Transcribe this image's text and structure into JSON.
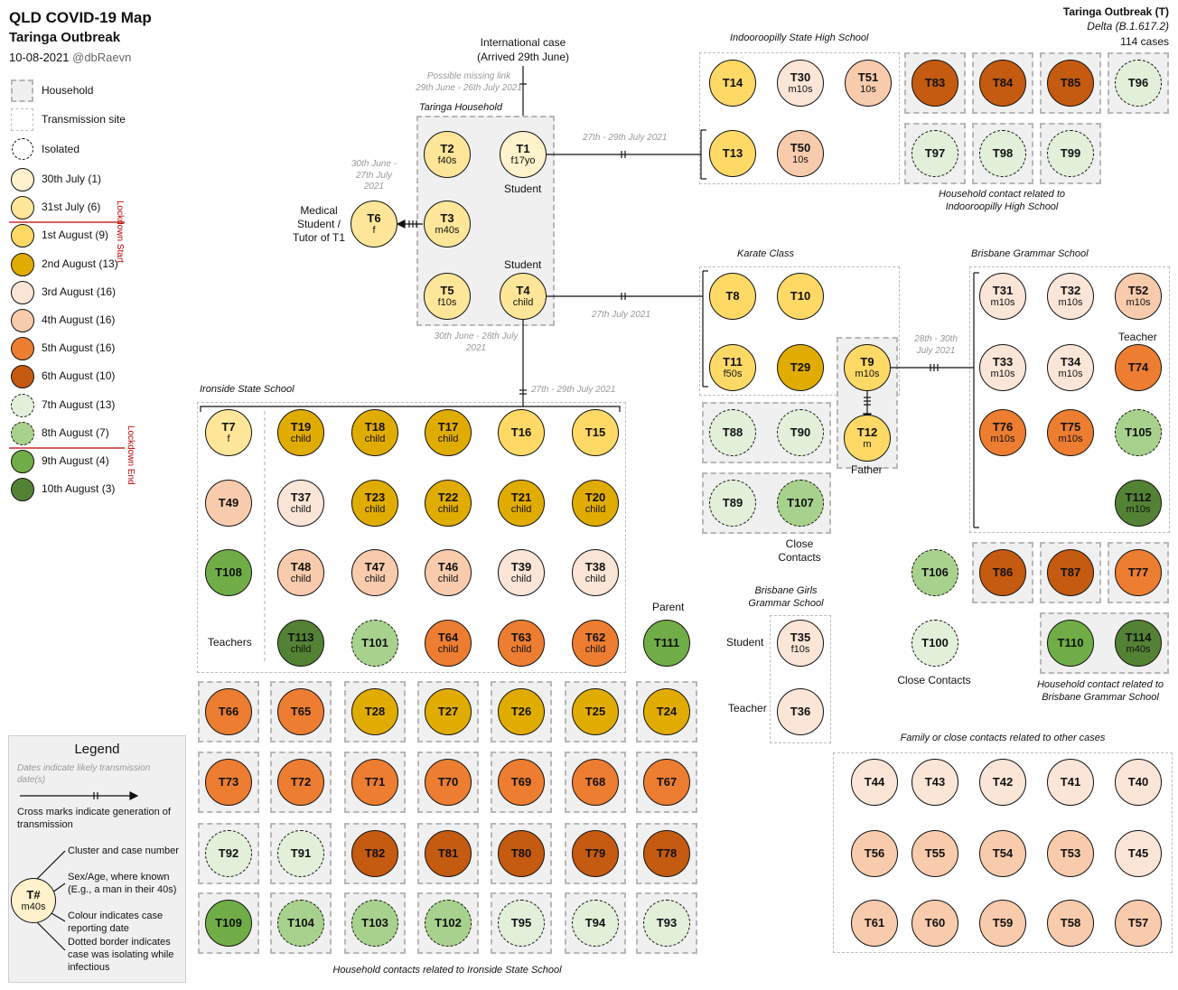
{
  "header": {
    "title": "QLD COVID-19 Map",
    "subtitle": "Taringa Outbreak",
    "date": "10-08-2021",
    "author": "@dbRaevn",
    "cluster_name": "Taringa Outbreak (T)",
    "variant": "Delta (B.1.617.2)",
    "cases": "114 cases"
  },
  "key": {
    "household": "Household",
    "transmission_site": "Transmission site",
    "isolated": "Isolated",
    "lockdown_start": "Lockdown Start",
    "lockdown_end": "Lockdown End",
    "dates": [
      {
        "label": "30th July (1)",
        "color": "#fff2cc",
        "iso": false
      },
      {
        "label": "31st July (6)",
        "color": "#ffe699",
        "iso": false
      },
      {
        "label": "1st August (9)",
        "color": "#ffd966",
        "iso": false
      },
      {
        "label": "2nd August (13)",
        "color": "#e1ac00",
        "iso": false
      },
      {
        "label": "3rd August (16)",
        "color": "#fbe5d6",
        "iso": false
      },
      {
        "label": "4th August (16)",
        "color": "#f8cbad",
        "iso": false
      },
      {
        "label": "5th August (16)",
        "color": "#ed7d31",
        "iso": false
      },
      {
        "label": "6th August (10)",
        "color": "#c55a11",
        "iso": false
      },
      {
        "label": "7th August (13)",
        "color": "#e2f0d9",
        "iso": true
      },
      {
        "label": "8th August (7)",
        "color": "#a9d18e",
        "iso": true
      },
      {
        "label": "9th August (4)",
        "color": "#70ad47",
        "iso": false
      },
      {
        "label": "10th August (3)",
        "color": "#548235",
        "iso": false
      }
    ]
  },
  "legend": {
    "title": "Legend",
    "dates_note": "Dates indicate likely transmission date(s)",
    "cross_note": "Cross marks indicate generation of transmission",
    "cluster_note": "Cluster and case number",
    "sex_note": "Sex/Age, where known (E.g., a man in their 40s)",
    "colour_note": "Colour indicates case reporting date",
    "dotted_note": "Dotted border indicates case was isolating while infectious",
    "sample_id": "T#",
    "sample_sa": "m40s"
  },
  "labels": {
    "international": "International case",
    "arrived": "(Arrived 29th June)",
    "missing_link": "Possible missing link",
    "missing_dates": "29th June - 26th July 2021",
    "taringa_household": "Taringa Household",
    "t6_dates": "30th June - 27th July 2021",
    "t6_role": "Medical Student / Tutor of T1",
    "student1": "Student",
    "student4": "Student",
    "t1_link": "27th - 29th July 2021",
    "t4_link": "27th July 2021",
    "t4_down": "30th June - 28th July 2021",
    "ironside_link": "27th - 29th July 2021",
    "indooroopilly": "Indooroopilly State High School",
    "indoor_hh": "Household contact related to Indooroopilly High School",
    "karate": "Karate Class",
    "t9_link": "28th - 30th July 2021",
    "father": "Father",
    "close_contacts_karate": "Close Contacts",
    "bgs": "Brisbane Grammar School",
    "teacher_bgs": "Teacher",
    "bgs_hh": "Household contact related to Brisbane Grammar School",
    "bggs": "Brisbane Girls Grammar School",
    "student_bggs": "Student",
    "teacher_bggs": "Teacher",
    "close_contacts": "Close Contacts",
    "ironside": "Ironside State School",
    "teachers": "Teachers",
    "parent": "Parent",
    "ironside_hh": "Household contacts related to Ironside State School",
    "family": "Family or close contacts related to other cases"
  },
  "cases": [
    {
      "id": "T1",
      "sa": "f17yo",
      "d": 0
    },
    {
      "id": "T2",
      "sa": "f40s",
      "d": 1
    },
    {
      "id": "T3",
      "sa": "m40s",
      "d": 1
    },
    {
      "id": "T4",
      "sa": "child",
      "d": 1
    },
    {
      "id": "T5",
      "sa": "f10s",
      "d": 1
    },
    {
      "id": "T6",
      "sa": "f",
      "d": 1
    },
    {
      "id": "T14",
      "sa": "",
      "d": 2
    },
    {
      "id": "T30",
      "sa": "m10s",
      "d": 4
    },
    {
      "id": "T51",
      "sa": "10s",
      "d": 5
    },
    {
      "id": "T13",
      "sa": "",
      "d": 2
    },
    {
      "id": "T50",
      "sa": "10s",
      "d": 5
    },
    {
      "id": "T83",
      "sa": "",
      "d": 7
    },
    {
      "id": "T84",
      "sa": "",
      "d": 7
    },
    {
      "id": "T85",
      "sa": "",
      "d": 7
    },
    {
      "id": "T96",
      "sa": "",
      "d": 8
    },
    {
      "id": "T97",
      "sa": "",
      "d": 8
    },
    {
      "id": "T98",
      "sa": "",
      "d": 8
    },
    {
      "id": "T99",
      "sa": "",
      "d": 8
    },
    {
      "id": "T8",
      "sa": "",
      "d": 2
    },
    {
      "id": "T10",
      "sa": "",
      "d": 2
    },
    {
      "id": "T11",
      "sa": "f50s",
      "d": 2
    },
    {
      "id": "T29",
      "sa": "",
      "d": 3
    },
    {
      "id": "T9",
      "sa": "m10s",
      "d": 2
    },
    {
      "id": "T12",
      "sa": "m",
      "d": 2
    },
    {
      "id": "T88",
      "sa": "",
      "d": 8
    },
    {
      "id": "T90",
      "sa": "",
      "d": 8
    },
    {
      "id": "T89",
      "sa": "",
      "d": 8
    },
    {
      "id": "T107",
      "sa": "",
      "d": 9
    },
    {
      "id": "T31",
      "sa": "m10s",
      "d": 4
    },
    {
      "id": "T32",
      "sa": "m10s",
      "d": 4
    },
    {
      "id": "T52",
      "sa": "m10s",
      "d": 5
    },
    {
      "id": "T33",
      "sa": "m10s",
      "d": 4
    },
    {
      "id": "T34",
      "sa": "m10s",
      "d": 4
    },
    {
      "id": "T74",
      "sa": "",
      "d": 6
    },
    {
      "id": "T76",
      "sa": "m10s",
      "d": 6
    },
    {
      "id": "T75",
      "sa": "m10s",
      "d": 6
    },
    {
      "id": "T105",
      "sa": "",
      "d": 9
    },
    {
      "id": "T112",
      "sa": "m10s",
      "d": 11
    },
    {
      "id": "T86",
      "sa": "",
      "d": 7
    },
    {
      "id": "T87",
      "sa": "",
      "d": 7
    },
    {
      "id": "T77",
      "sa": "",
      "d": 6
    },
    {
      "id": "T106",
      "sa": "",
      "d": 9
    },
    {
      "id": "T100",
      "sa": "",
      "d": 8
    },
    {
      "id": "T110",
      "sa": "",
      "d": 10
    },
    {
      "id": "T114",
      "sa": "m40s",
      "d": 11
    },
    {
      "id": "T35",
      "sa": "f10s",
      "d": 4
    },
    {
      "id": "T36",
      "sa": "",
      "d": 4
    },
    {
      "id": "T7",
      "sa": "f",
      "d": 1
    },
    {
      "id": "T19",
      "sa": "child",
      "d": 3
    },
    {
      "id": "T18",
      "sa": "child",
      "d": 3
    },
    {
      "id": "T17",
      "sa": "child",
      "d": 3
    },
    {
      "id": "T16",
      "sa": "",
      "d": 2
    },
    {
      "id": "T15",
      "sa": "",
      "d": 2
    },
    {
      "id": "T49",
      "sa": "",
      "d": 5
    },
    {
      "id": "T37",
      "sa": "child",
      "d": 4
    },
    {
      "id": "T23",
      "sa": "child",
      "d": 3
    },
    {
      "id": "T22",
      "sa": "child",
      "d": 3
    },
    {
      "id": "T21",
      "sa": "child",
      "d": 3
    },
    {
      "id": "T20",
      "sa": "child",
      "d": 3
    },
    {
      "id": "T108",
      "sa": "",
      "d": 10
    },
    {
      "id": "T48",
      "sa": "child",
      "d": 5
    },
    {
      "id": "T47",
      "sa": "child",
      "d": 5
    },
    {
      "id": "T46",
      "sa": "child",
      "d": 5
    },
    {
      "id": "T39",
      "sa": "child",
      "d": 4
    },
    {
      "id": "T38",
      "sa": "child",
      "d": 4
    },
    {
      "id": "T113",
      "sa": "child",
      "d": 11
    },
    {
      "id": "T101",
      "sa": "",
      "d": 9
    },
    {
      "id": "T64",
      "sa": "child",
      "d": 6
    },
    {
      "id": "T63",
      "sa": "child",
      "d": 6
    },
    {
      "id": "T62",
      "sa": "child",
      "d": 6
    },
    {
      "id": "T111",
      "sa": "",
      "d": 10
    },
    {
      "id": "T66",
      "sa": "",
      "d": 6
    },
    {
      "id": "T65",
      "sa": "",
      "d": 6
    },
    {
      "id": "T28",
      "sa": "",
      "d": 3
    },
    {
      "id": "T27",
      "sa": "",
      "d": 3
    },
    {
      "id": "T26",
      "sa": "",
      "d": 3
    },
    {
      "id": "T25",
      "sa": "",
      "d": 3
    },
    {
      "id": "T24",
      "sa": "",
      "d": 3
    },
    {
      "id": "T73",
      "sa": "",
      "d": 6
    },
    {
      "id": "T72",
      "sa": "",
      "d": 6
    },
    {
      "id": "T71",
      "sa": "",
      "d": 6
    },
    {
      "id": "T70",
      "sa": "",
      "d": 6
    },
    {
      "id": "T69",
      "sa": "",
      "d": 6
    },
    {
      "id": "T68",
      "sa": "",
      "d": 6
    },
    {
      "id": "T67",
      "sa": "",
      "d": 6
    },
    {
      "id": "T92",
      "sa": "",
      "d": 8
    },
    {
      "id": "T91",
      "sa": "",
      "d": 8
    },
    {
      "id": "T82",
      "sa": "",
      "d": 7
    },
    {
      "id": "T81",
      "sa": "",
      "d": 7
    },
    {
      "id": "T80",
      "sa": "",
      "d": 7
    },
    {
      "id": "T79",
      "sa": "",
      "d": 7
    },
    {
      "id": "T78",
      "sa": "",
      "d": 7
    },
    {
      "id": "T109",
      "sa": "",
      "d": 10
    },
    {
      "id": "T104",
      "sa": "",
      "d": 9
    },
    {
      "id": "T103",
      "sa": "",
      "d": 9
    },
    {
      "id": "T102",
      "sa": "",
      "d": 9
    },
    {
      "id": "T95",
      "sa": "",
      "d": 8
    },
    {
      "id": "T94",
      "sa": "",
      "d": 8
    },
    {
      "id": "T93",
      "sa": "",
      "d": 8
    },
    {
      "id": "T44",
      "sa": "",
      "d": 4
    },
    {
      "id": "T43",
      "sa": "",
      "d": 4
    },
    {
      "id": "T42",
      "sa": "",
      "d": 4
    },
    {
      "id": "T41",
      "sa": "",
      "d": 4
    },
    {
      "id": "T40",
      "sa": "",
      "d": 4
    },
    {
      "id": "T56",
      "sa": "",
      "d": 5
    },
    {
      "id": "T55",
      "sa": "",
      "d": 5
    },
    {
      "id": "T54",
      "sa": "",
      "d": 5
    },
    {
      "id": "T53",
      "sa": "",
      "d": 5
    },
    {
      "id": "T45",
      "sa": "",
      "d": 4
    },
    {
      "id": "T61",
      "sa": "",
      "d": 5
    },
    {
      "id": "T60",
      "sa": "",
      "d": 5
    },
    {
      "id": "T59",
      "sa": "",
      "d": 5
    },
    {
      "id": "T58",
      "sa": "",
      "d": 5
    },
    {
      "id": "T57",
      "sa": "",
      "d": 5
    }
  ]
}
